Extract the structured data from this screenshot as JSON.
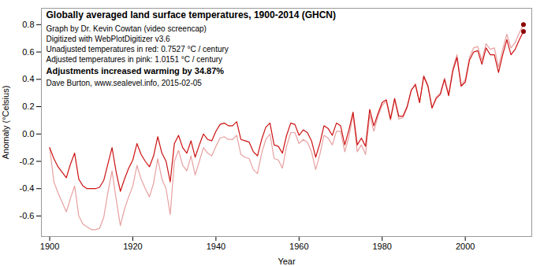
{
  "chart_data": {
    "type": "line",
    "title": "Globally averaged land surface temperatures, 1900-2014 (GHCN)",
    "subtitle": [
      "Graph by Dr. Kevin Cowtan (video screencap)",
      "Digitized with WebPlotDigitizer v3.6",
      "Unadjusted temperatures in red: 0.7527 °C / century",
      "Adjusted temperatures in pink: 1.0151 °C / century"
    ],
    "annotations": [
      "Adjustments increased warming by 34.87%",
      "Dave Burton, www.sealevel.info, 2015-02-05"
    ],
    "xlabel": "Year",
    "ylabel": "Anomaly (°Celsius)",
    "x": [
      1900,
      1901,
      1902,
      1903,
      1904,
      1905,
      1906,
      1907,
      1908,
      1909,
      1910,
      1911,
      1912,
      1913,
      1914,
      1915,
      1916,
      1917,
      1918,
      1919,
      1920,
      1921,
      1922,
      1923,
      1924,
      1925,
      1926,
      1927,
      1928,
      1929,
      1930,
      1931,
      1932,
      1933,
      1934,
      1935,
      1936,
      1937,
      1938,
      1939,
      1940,
      1941,
      1942,
      1943,
      1944,
      1945,
      1946,
      1947,
      1948,
      1949,
      1950,
      1951,
      1952,
      1953,
      1954,
      1955,
      1956,
      1957,
      1958,
      1959,
      1960,
      1961,
      1962,
      1963,
      1964,
      1965,
      1966,
      1967,
      1968,
      1969,
      1970,
      1971,
      1972,
      1973,
      1974,
      1975,
      1976,
      1977,
      1978,
      1979,
      1980,
      1981,
      1982,
      1983,
      1984,
      1985,
      1986,
      1987,
      1988,
      1989,
      1990,
      1991,
      1992,
      1993,
      1994,
      1995,
      1996,
      1997,
      1998,
      1999,
      2000,
      2001,
      2002,
      2003,
      2004,
      2005,
      2006,
      2007,
      2008,
      2009,
      2010,
      2011,
      2012,
      2013,
      2014
    ],
    "series": [
      {
        "color": "#e8a0a0",
        "values": [
          -0.1,
          -0.35,
          -0.43,
          -0.5,
          -0.57,
          -0.47,
          -0.38,
          -0.6,
          -0.66,
          -0.68,
          -0.7,
          -0.7,
          -0.69,
          -0.61,
          -0.43,
          -0.27,
          -0.48,
          -0.67,
          -0.55,
          -0.46,
          -0.38,
          -0.23,
          -0.33,
          -0.4,
          -0.46,
          -0.36,
          -0.18,
          -0.33,
          -0.4,
          -0.59,
          -0.2,
          -0.12,
          -0.23,
          -0.27,
          -0.16,
          -0.3,
          -0.2,
          -0.1,
          -0.14,
          -0.16,
          -0.09,
          -0.03,
          -0.02,
          -0.04,
          -0.04,
          -0.01,
          -0.15,
          -0.17,
          -0.18,
          -0.26,
          -0.29,
          -0.14,
          -0.04,
          0.0,
          -0.18,
          -0.19,
          -0.25,
          -0.09,
          0.01,
          0.01,
          -0.07,
          -0.04,
          -0.06,
          -0.13,
          -0.26,
          -0.15,
          -0.01,
          -0.03,
          -0.08,
          0.02,
          0.02,
          -0.13,
          -0.02,
          0.14,
          -0.13,
          -0.08,
          -0.15,
          0.14,
          0.02,
          0.13,
          0.21,
          0.24,
          0.1,
          0.25,
          0.11,
          0.12,
          0.19,
          0.32,
          0.37,
          0.23,
          0.43,
          0.36,
          0.19,
          0.27,
          0.3,
          0.41,
          0.29,
          0.48,
          0.58,
          0.36,
          0.4,
          0.56,
          0.63,
          0.64,
          0.54,
          0.66,
          0.62,
          0.63,
          0.49,
          0.62,
          0.73,
          0.63,
          0.67,
          0.74,
          0.8
        ]
      },
      {
        "color": "#cc1111",
        "values": [
          -0.1,
          -0.18,
          -0.24,
          -0.28,
          -0.32,
          -0.22,
          -0.14,
          -0.33,
          -0.38,
          -0.4,
          -0.4,
          -0.4,
          -0.39,
          -0.34,
          -0.22,
          -0.1,
          -0.28,
          -0.42,
          -0.33,
          -0.25,
          -0.19,
          -0.07,
          -0.15,
          -0.2,
          -0.24,
          -0.16,
          -0.02,
          -0.14,
          -0.2,
          -0.35,
          -0.07,
          -0.01,
          -0.1,
          -0.14,
          -0.05,
          -0.17,
          -0.08,
          0.0,
          -0.04,
          -0.05,
          0.02,
          0.07,
          0.08,
          0.06,
          0.06,
          0.09,
          -0.04,
          -0.05,
          -0.06,
          -0.13,
          -0.16,
          -0.04,
          0.05,
          0.08,
          -0.08,
          -0.09,
          -0.14,
          -0.01,
          0.08,
          0.07,
          -0.01,
          0.03,
          0.01,
          -0.05,
          -0.17,
          -0.07,
          0.06,
          0.04,
          -0.01,
          0.08,
          0.06,
          -0.08,
          0.03,
          0.16,
          -0.08,
          -0.03,
          -0.09,
          0.18,
          0.06,
          0.15,
          0.23,
          0.25,
          0.11,
          0.26,
          0.13,
          0.13,
          0.2,
          0.32,
          0.36,
          0.23,
          0.42,
          0.35,
          0.19,
          0.26,
          0.29,
          0.4,
          0.28,
          0.46,
          0.56,
          0.35,
          0.38,
          0.54,
          0.6,
          0.61,
          0.51,
          0.63,
          0.58,
          0.58,
          0.45,
          0.58,
          0.69,
          0.58,
          0.62,
          0.69,
          0.75
        ]
      },
      {
        "type": "scatter",
        "color": "#8b0000",
        "x": [
          2014
        ],
        "values": [
          0.75
        ]
      },
      {
        "type": "scatter",
        "color": "#8b0000",
        "x": [
          2014
        ],
        "values": [
          0.8
        ]
      }
    ],
    "xlim": [
      1898,
      2016
    ],
    "ylim": [
      -0.75,
      0.92
    ],
    "xticks": [
      1900,
      1920,
      1940,
      1960,
      1980,
      2000
    ],
    "yticks": [
      -0.6,
      -0.4,
      -0.2,
      {
        "value": 0,
        "label": "0.0"
      },
      0.2,
      0.4,
      0.6,
      0.8
    ],
    "grid": false
  }
}
